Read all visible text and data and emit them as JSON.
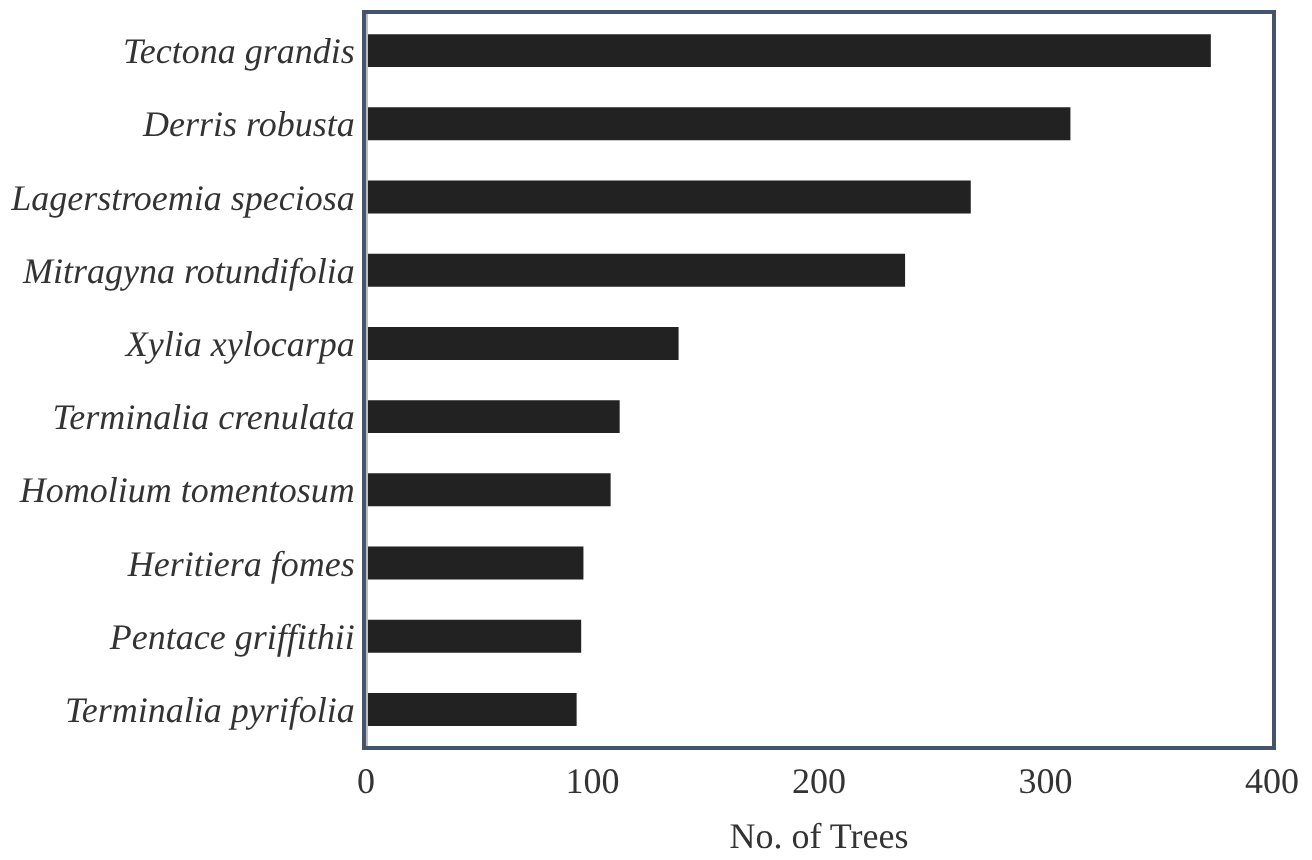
{
  "chart_data": {
    "type": "bar",
    "orientation": "horizontal",
    "xlabel": "No. of Trees",
    "categories": [
      "Tectona grandis",
      "Derris robusta",
      "Lagerstroemia speciosa",
      "Mitragyna rotundifolia",
      "Xylia xylocarpa",
      "Terminalia crenulata",
      "Homolium tomentosum",
      "Heritiera fomes",
      "Pentace griffithii",
      "Terminalia pyrifolia"
    ],
    "values": [
      373,
      311,
      267,
      238,
      138,
      112,
      108,
      96,
      95,
      93
    ],
    "color": "#222222",
    "xlim": [
      0,
      400
    ],
    "xticks": [
      0,
      100,
      200,
      300,
      400
    ]
  }
}
